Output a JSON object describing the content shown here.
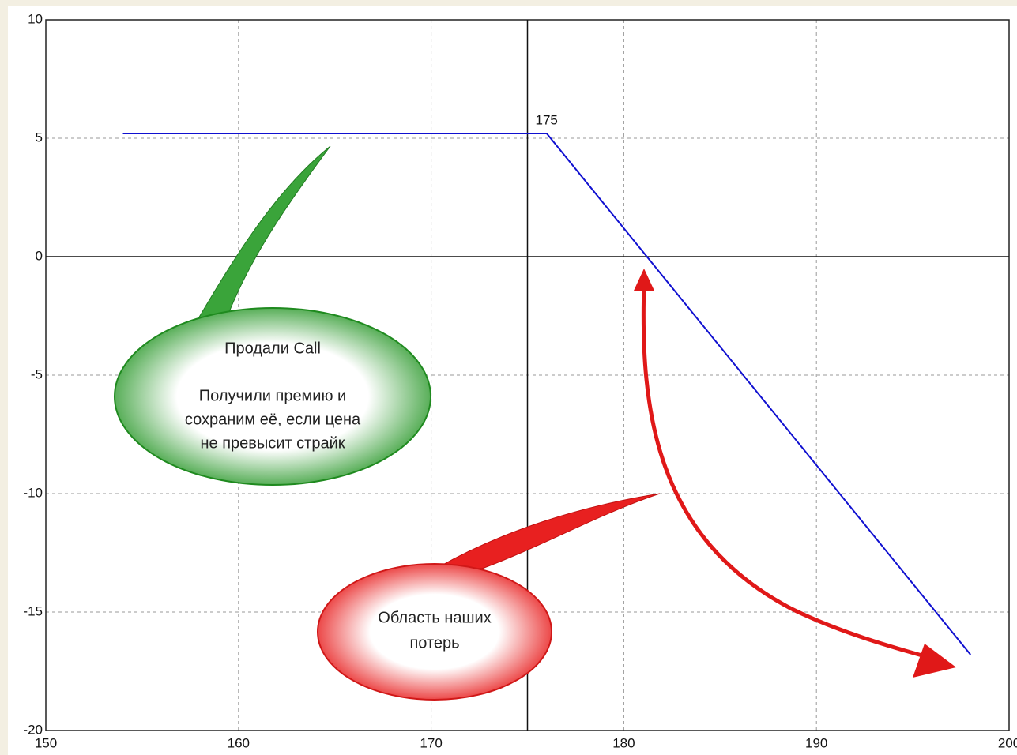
{
  "chart_data": {
    "type": "line",
    "x": [
      154,
      176,
      198
    ],
    "series": [
      {
        "color": "#1010d0",
        "values": [
          5.2,
          5.2,
          -16.8
        ]
      }
    ],
    "xlim": [
      150,
      200
    ],
    "xticks": [
      150,
      160,
      170,
      180,
      190,
      200
    ],
    "ylim": [
      -20,
      10
    ],
    "yticks": [
      10,
      5,
      0,
      -5,
      -10,
      -15,
      -20
    ],
    "grid": true,
    "strike": 175,
    "zero_line": 0,
    "annotations": [
      {
        "lines": [
          "Продали Call",
          "",
          "Получили премию и",
          "сохраним её, если цена",
          "не превысит страйк"
        ]
      },
      {
        "lines": [
          "Область наших",
          "потерь"
        ]
      }
    ]
  }
}
